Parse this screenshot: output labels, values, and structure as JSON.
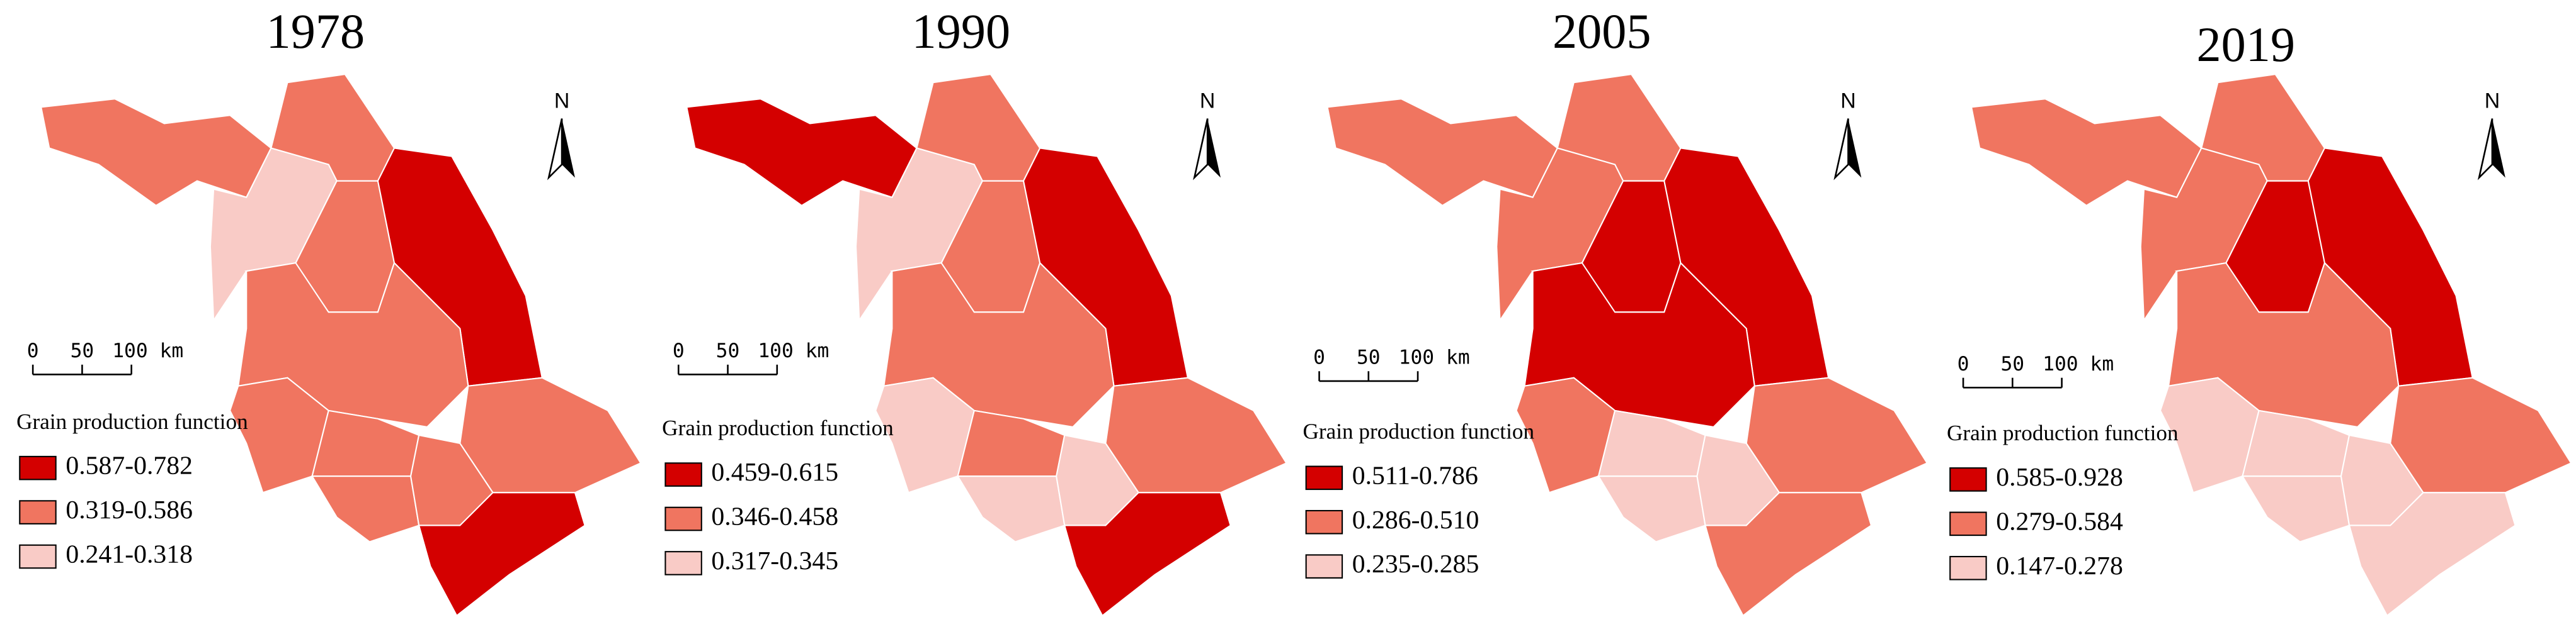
{
  "panels": [
    {
      "title": "1978",
      "north": "N",
      "scale_labels": [
        "0",
        "50",
        "100 km"
      ],
      "legend": {
        "title": "Grain production function",
        "items": [
          {
            "label": "0.587-0.782",
            "color": "#d40000"
          },
          {
            "label": "0.319-0.586",
            "color": "#f07560"
          },
          {
            "label": "0.241-0.318",
            "color": "#f9cbc6"
          }
        ]
      }
    },
    {
      "title": "1990",
      "north": "N",
      "scale_labels": [
        "0",
        "50",
        "100 km"
      ],
      "legend": {
        "title": "Grain production function",
        "items": [
          {
            "label": "0.459-0.615",
            "color": "#d40000"
          },
          {
            "label": "0.346-0.458",
            "color": "#f07560"
          },
          {
            "label": "0.317-0.345",
            "color": "#f9cbc6"
          }
        ]
      }
    },
    {
      "title": "2005",
      "north": "N",
      "scale_labels": [
        "0",
        "50",
        "100 km"
      ],
      "legend": {
        "title": "Grain production function",
        "items": [
          {
            "label": "0.511-0.786",
            "color": "#d40000"
          },
          {
            "label": "0.286-0.510",
            "color": "#f07560"
          },
          {
            "label": "0.235-0.285",
            "color": "#f9cbc6"
          }
        ]
      }
    },
    {
      "title": "2019",
      "north": "N",
      "scale_labels": [
        "0",
        "50",
        "100 km"
      ],
      "legend": {
        "title": "Grain production function",
        "items": [
          {
            "label": "0.585-0.928",
            "color": "#d40000"
          },
          {
            "label": "0.279-0.584",
            "color": "#f07560"
          },
          {
            "label": "0.147-0.278",
            "color": "#f9cbc6"
          }
        ]
      }
    }
  ]
}
